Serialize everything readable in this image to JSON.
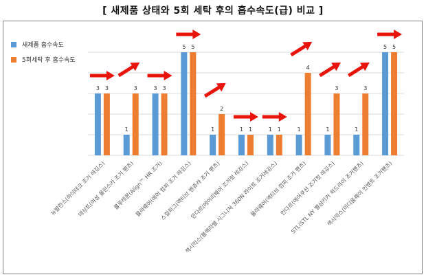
{
  "title": "[ 새제품 상태와 5회 세탁 후의 흡수속도(급) 비교 ]",
  "colors": {
    "series_new": "#5b9bd5",
    "series_washed": "#ed7d31",
    "arrow": "#e8140c",
    "grid": "#d9d9d9"
  },
  "chart_data": {
    "type": "bar",
    "categories": [
      "뉴발란스(하이테크 조거 레깅스)",
      "데상트(여성 올린스카 조거 팬츠)",
      "룰루레몬(Align™ HR 조거)",
      "뮬라웨어(에어 컴피 조거 레깅스)",
      "스컬피그(액티브 벤츄라 조거 팬츠)",
      "안다르(에어리웨어 조거핏 레깅스)",
      "젝시믹스(블랙라벨 시그니처 360N 라이트 조거레깅스)",
      "뮬라웨어(액티브 컴피 조거 팬츠)",
      "안다르(에어쿠션 조거핏 레깅스)",
      "STL(STL NY 벨샴키커 윅드라이 조거팬츠)",
      "젝시믹스(미디움웨이 인벤트 조거팬츠)"
    ],
    "series": [
      {
        "name": "새제품 흡수속도",
        "values": [
          3,
          1,
          3,
          5,
          1,
          1,
          1,
          1,
          1,
          1,
          5
        ]
      },
      {
        "name": "5회세탁 후 흡수속도",
        "values": [
          3,
          3,
          3,
          5,
          2,
          1,
          1,
          4,
          3,
          3,
          5
        ]
      }
    ],
    "arrows": [
      "flat",
      "up",
      "flat",
      "flat",
      "up",
      "flat",
      "flat",
      "up",
      "up",
      "up",
      "flat"
    ],
    "ylim": [
      0,
      5
    ],
    "grid": true,
    "legend_position": "top-left",
    "data_labels": true
  }
}
